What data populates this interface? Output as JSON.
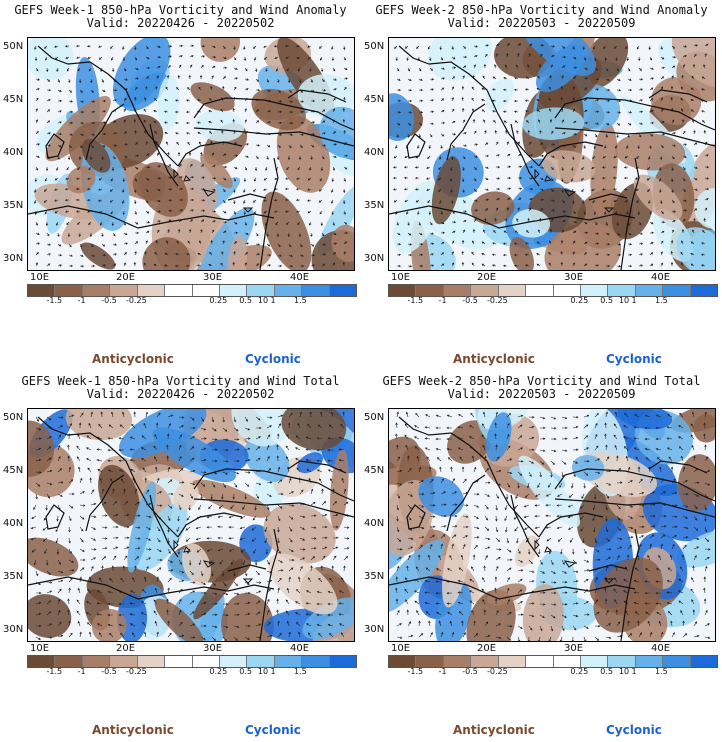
{
  "colors": {
    "anticyclonic": "#7b4a2e",
    "cyclonic": "#1b62d6",
    "colorbar": [
      "#6b4a36",
      "#8a6049",
      "#a97e66",
      "#c9a795",
      "#e4d2c7",
      "#ffffff",
      "#ffffff",
      "#d3f1fa",
      "#9bd7f3",
      "#66b1ea",
      "#3d8fe2",
      "#1d6bd8"
    ]
  },
  "legend": {
    "anticyclonic": "Anticyclonic",
    "cyclonic": "Cyclonic"
  },
  "axes": {
    "lat_labels": [
      "50N",
      "45N",
      "40N",
      "35N",
      "30N"
    ],
    "lon_labels": [
      "10E",
      "20E",
      "30E",
      "40E"
    ]
  },
  "colorbar_labels": [
    "-1.5",
    "-1",
    "-0.5",
    "-0.25",
    "0.25",
    "0.5",
    "1",
    "1.5"
  ],
  "colorbar_tag": "10",
  "panels": [
    {
      "title1": "GEFS Week-1 850-hPa Vorticity and Wind Anomaly",
      "title2": "Valid: 20220426 - 20220502",
      "field": "anomaly",
      "week": 1
    },
    {
      "title1": "GEFS Week-2 850-hPa Vorticity and Wind Anomaly",
      "title2": "Valid: 20220503 - 20220509",
      "field": "anomaly",
      "week": 2
    },
    {
      "title1": "GEFS Week-1 850-hPa Vorticity and Wind Total",
      "title2": "Valid: 20220426 - 20220502",
      "field": "total",
      "week": 1
    },
    {
      "title1": "GEFS Week-2 850-hPa Vorticity and Wind Total",
      "title2": "Valid: 20220503 - 20220509",
      "field": "total",
      "week": 2
    }
  ]
}
